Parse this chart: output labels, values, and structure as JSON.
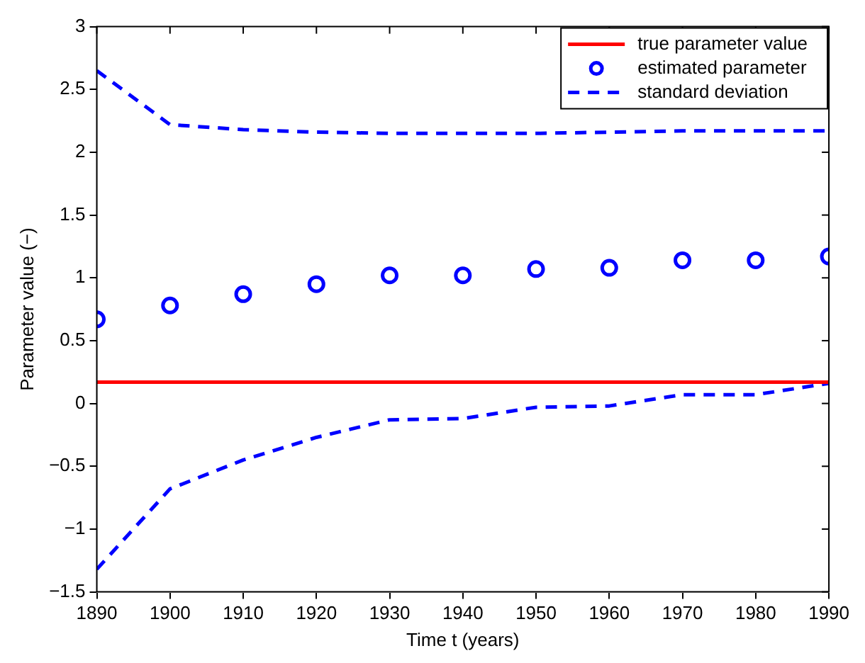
{
  "chart_data": {
    "type": "line",
    "xlabel": "Time t (years)",
    "ylabel": "Parameter value (−)",
    "x": [
      1890,
      1900,
      1910,
      1920,
      1930,
      1940,
      1950,
      1960,
      1970,
      1980,
      1990
    ],
    "series": [
      {
        "name": "true parameter value",
        "color": "#ff0000",
        "line_style": "solid",
        "marker": "none",
        "values": [
          0.17,
          0.17,
          0.17,
          0.17,
          0.17,
          0.17,
          0.17,
          0.17,
          0.17,
          0.17,
          0.17
        ]
      },
      {
        "name": "estimated parameter",
        "type": "scatter",
        "color": "#0000ff",
        "marker": "circle",
        "values": [
          0.67,
          0.78,
          0.87,
          0.95,
          1.02,
          1.02,
          1.07,
          1.08,
          1.14,
          1.14,
          1.17
        ]
      },
      {
        "name": "standard deviation",
        "color": "#0000ff",
        "line_style": "dashed",
        "marker": "none",
        "values": [
          2.65,
          2.22,
          2.18,
          2.16,
          2.15,
          2.15,
          2.15,
          2.16,
          2.17,
          2.17,
          2.17
        ]
      },
      {
        "color": "#0000ff",
        "line_style": "dashed",
        "marker": "none",
        "values": [
          -1.32,
          -0.68,
          -0.45,
          -0.27,
          -0.13,
          -0.12,
          -0.03,
          -0.02,
          0.07,
          0.07,
          0.16
        ]
      }
    ],
    "xlim": [
      1890,
      1990
    ],
    "xticks": [
      1890,
      1900,
      1910,
      1920,
      1930,
      1940,
      1950,
      1960,
      1970,
      1980,
      1990
    ],
    "ylim": [
      -1.5,
      3
    ],
    "yticks": [
      -1.5,
      -1,
      -0.5,
      0,
      0.5,
      1,
      1.5,
      2,
      2.5,
      3
    ],
    "grid": false,
    "legend": "top right"
  }
}
